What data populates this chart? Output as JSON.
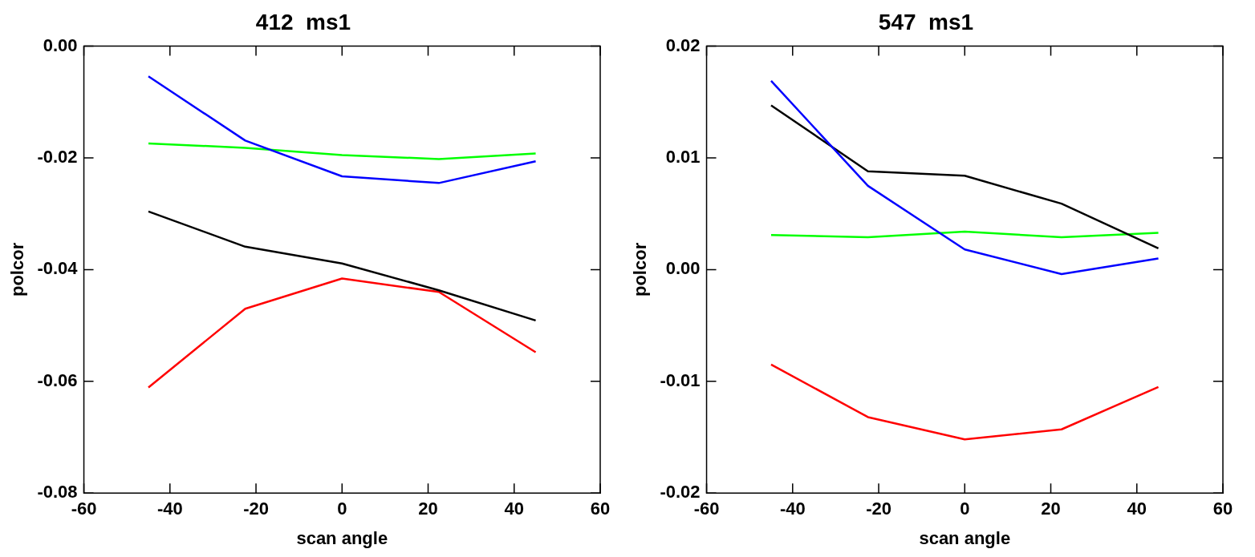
{
  "chart_data": [
    {
      "type": "line",
      "title": "412  ms1",
      "xlabel": "scan angle",
      "ylabel": "polcor",
      "x": [
        -45,
        -22.5,
        0,
        22.5,
        45
      ],
      "xlim": [
        -60,
        60
      ],
      "xticks": [
        -60,
        -40,
        -20,
        0,
        20,
        40,
        60
      ],
      "ylim": [
        -0.08,
        0
      ],
      "yticks": [
        {
          "value": -0.08,
          "label": "-0.08"
        },
        {
          "value": -0.06,
          "label": "-0.06"
        },
        {
          "value": -0.04,
          "label": "-0.04"
        },
        {
          "value": -0.02,
          "label": "-0.02"
        },
        {
          "value": 0,
          "label": "0.00"
        }
      ],
      "grid": false,
      "marker": "none",
      "line_style": "solid",
      "series": [
        {
          "color": "#0000ff",
          "values": [
            -0.0054,
            -0.0169,
            -0.0233,
            -0.0245,
            -0.0206
          ]
        },
        {
          "color": "#00ff00",
          "values": [
            -0.0174,
            -0.0182,
            -0.0195,
            -0.0202,
            -0.0192
          ]
        },
        {
          "color": "#000000",
          "values": [
            -0.0296,
            -0.0359,
            -0.0389,
            -0.0437,
            -0.0491
          ]
        },
        {
          "color": "#ff0000",
          "values": [
            -0.0611,
            -0.047,
            -0.0416,
            -0.044,
            -0.0548
          ]
        }
      ]
    },
    {
      "type": "line",
      "title": "547  ms1",
      "xlabel": "scan angle",
      "ylabel": "polcor",
      "x": [
        -45,
        -22.5,
        0,
        22.5,
        45
      ],
      "xlim": [
        -60,
        60
      ],
      "xticks": [
        -60,
        -40,
        -20,
        0,
        20,
        40,
        60
      ],
      "ylim": [
        -0.02,
        0.02
      ],
      "yticks": [
        {
          "value": -0.02,
          "label": "-0.02"
        },
        {
          "value": -0.01,
          "label": "-0.01"
        },
        {
          "value": 0,
          "label": "0.00"
        },
        {
          "value": 0.01,
          "label": "0.01"
        },
        {
          "value": 0.02,
          "label": "0.02"
        }
      ],
      "grid": false,
      "marker": "none",
      "line_style": "solid",
      "series": [
        {
          "color": "#0000ff",
          "values": [
            0.0169,
            0.0075,
            0.0018,
            -0.0004,
            0.001
          ]
        },
        {
          "color": "#000000",
          "values": [
            0.0147,
            0.0088,
            0.0084,
            0.0059,
            0.0019
          ]
        },
        {
          "color": "#00ff00",
          "values": [
            0.0031,
            0.0029,
            0.0034,
            0.0029,
            0.0033
          ]
        },
        {
          "color": "#ff0000",
          "values": [
            -0.0085,
            -0.0132,
            -0.0152,
            -0.0143,
            -0.0105
          ]
        }
      ]
    }
  ]
}
